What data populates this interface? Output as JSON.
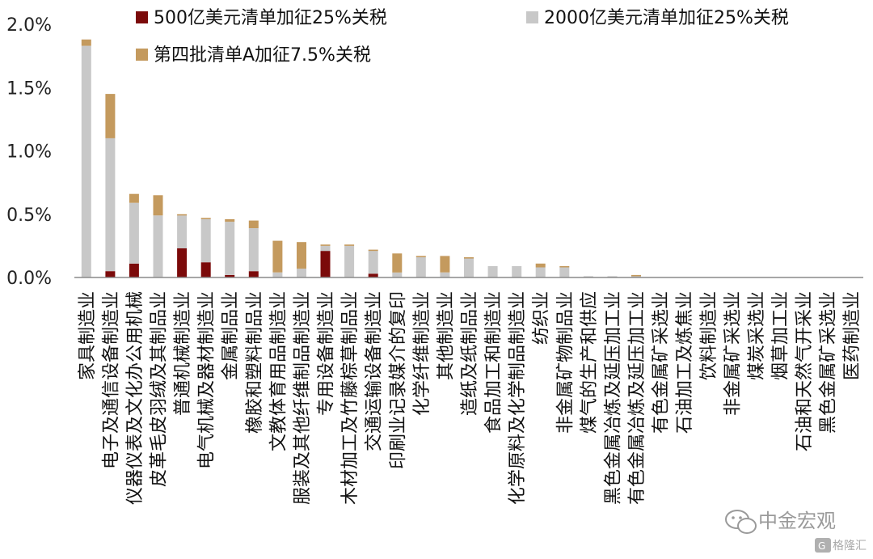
{
  "chart_data": {
    "type": "bar",
    "stacked": true,
    "ylim": [
      0,
      2.0
    ],
    "yticks": [
      "0.0%",
      "0.5%",
      "1.0%",
      "1.5%",
      "2.0%"
    ],
    "yunit": "%",
    "grid": false,
    "legend_position": "top",
    "categories": [
      "家具制造业",
      "电子及通信设备制造业",
      "仪器仪表及文化办公用机械",
      "皮革毛皮羽绒及其制品业",
      "普通机械制造业",
      "电气机械及器材制造业",
      "金属制品业",
      "橡胶和塑料制品业",
      "文教体育用品制造业",
      "服装及其他纤维制品制造业",
      "专用设备制造业",
      "木材加工及竹藤棕草制品业",
      "交通运输设备制造业",
      "印刷业记录媒介的复印",
      "化学纤维制造业",
      "其他制造业",
      "造纸及纸制品业",
      "食品加工和制造业",
      "化学原料及化学制品制造业",
      "纺织业",
      "非金属矿物制品业",
      "煤气的生产和供应",
      "黑色金属冶炼及延压加工业",
      "有色金属冶炼及延压加工业",
      "有色金属矿采选业",
      "石油加工及炼焦业",
      "饮料制造业",
      "非金属矿采选业",
      "煤炭采选业",
      "烟草加工业",
      "石油和天然气开采业",
      "黑色金属矿采选业",
      "医药制造业"
    ],
    "series": [
      {
        "name": "500亿美元清单加征25%关税",
        "color": "#7b0a0a",
        "values": [
          0,
          0.05,
          0.11,
          0,
          0.23,
          0.12,
          0.02,
          0.05,
          0,
          0,
          0.21,
          0,
          0.03,
          0,
          0,
          0,
          0,
          0,
          0,
          0,
          0,
          0,
          0,
          0,
          0,
          0,
          0,
          0,
          0,
          0,
          0,
          0,
          0
        ]
      },
      {
        "name": "2000亿美元清单加征25%关税",
        "color": "#c8c8c8",
        "values": [
          1.83,
          1.05,
          0.48,
          0.49,
          0.26,
          0.34,
          0.42,
          0.34,
          0.04,
          0.07,
          0.04,
          0.25,
          0.18,
          0.04,
          0.16,
          0.04,
          0.15,
          0.09,
          0.09,
          0.08,
          0.08,
          0.01,
          0.01,
          0.01,
          0,
          0,
          0,
          0,
          0,
          0,
          0,
          0,
          0
        ]
      },
      {
        "name": "第四批清单A加征7.5%关税",
        "color": "#c49a5e",
        "values": [
          0.05,
          0.35,
          0.07,
          0.16,
          0.01,
          0.01,
          0.02,
          0.06,
          0.25,
          0.21,
          0.01,
          0.01,
          0.01,
          0.15,
          0.01,
          0.13,
          0.01,
          0,
          0,
          0.03,
          0.01,
          0,
          0,
          0.01,
          0,
          0,
          0,
          0,
          0,
          0,
          0,
          0,
          0
        ]
      }
    ]
  },
  "watermark": {
    "brand": "中金宏观",
    "logo_text": "格隆汇"
  }
}
